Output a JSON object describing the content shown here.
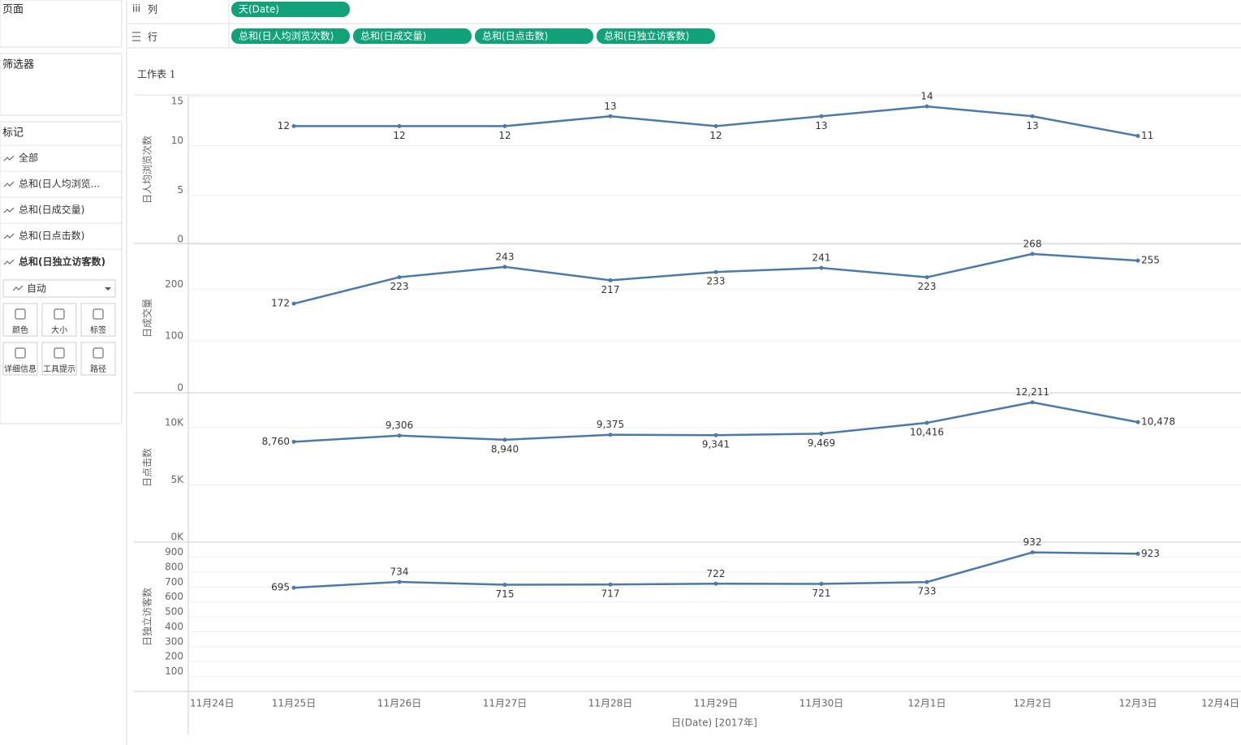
{
  "ui": {
    "pages": "页面",
    "columns": "列",
    "column_pill": "天(Date)",
    "rows": "行",
    "row_pills": [
      "总和(日人均浏览次数)",
      "总和(日成交量)",
      "总和(日点击数)",
      "总和(日独立访客数)"
    ],
    "filters": "筛选器",
    "marks": "标记",
    "mark_items": [
      "全部",
      "总和(日人均浏览...",
      "总和(日成交量)",
      "总和(日点击数)",
      "总和(日独立访客数)"
    ],
    "mark_type": "自动",
    "mark_buttons": [
      "颜色",
      "大小",
      "标签",
      "详细信息",
      "工具提示",
      "路径"
    ]
  },
  "chart_data": {
    "type": "line",
    "title": "工作表 1",
    "x_label": "日(Date) [2017年]",
    "categories": [
      "11月24日",
      "11月25日",
      "11月26日",
      "11月27日",
      "11月28日",
      "11月29日",
      "11月30日",
      "12月1日",
      "12月2日",
      "12月3日",
      "12月4日"
    ],
    "color": "#4e79a7",
    "grid": true,
    "panels": [
      {
        "y_label": "日人均浏览次数",
        "ylim": [
          0,
          15
        ],
        "yticks": [
          0,
          5,
          10,
          15
        ],
        "values": [
          null,
          12,
          12,
          12,
          13,
          12,
          13,
          14,
          13,
          11,
          null
        ]
      },
      {
        "y_label": "日成交量",
        "ylim": [
          0,
          285
        ],
        "yticks": [
          0,
          100,
          200
        ],
        "values": [
          null,
          172,
          223,
          243,
          217,
          233,
          241,
          223,
          268,
          255,
          null
        ]
      },
      {
        "y_label": "日点击数",
        "ylim": [
          0,
          12900
        ],
        "yticks": [
          {
            "value": 0,
            "label": "0K"
          },
          {
            "value": 5000,
            "label": "5K"
          },
          {
            "value": 10000,
            "label": "10K"
          }
        ],
        "values": [
          null,
          8760,
          9306,
          8940,
          9375,
          9341,
          9469,
          10416,
          12211,
          10478,
          null
        ],
        "value_labels": [
          null,
          "8,760",
          "9,306",
          "8,940",
          "9,375",
          "9,341",
          "9,469",
          "10,416",
          "12,211",
          "10,478",
          null
        ]
      },
      {
        "y_label": "日独立访客数",
        "ylim": [
          0,
          990
        ],
        "yticks": [
          100,
          200,
          300,
          400,
          500,
          600,
          700,
          800,
          900
        ],
        "values": [
          null,
          695,
          734,
          715,
          717,
          722,
          721,
          733,
          932,
          923,
          null
        ]
      }
    ]
  }
}
